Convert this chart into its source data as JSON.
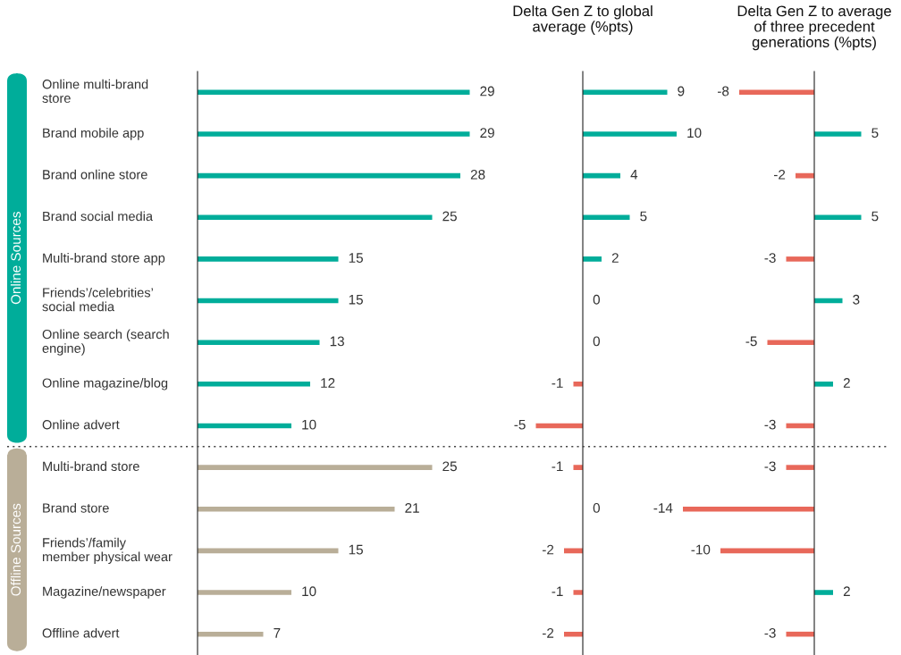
{
  "chart_data": [
    {
      "type": "bar",
      "orientation": "horizontal",
      "tick_labels": "y",
      "data_labels": true,
      "annotations": [
        "Online Sources",
        "Offline Sources"
      ],
      "categories": [
        "Online multi-brand store",
        "Brand mobile app",
        "Brand online store",
        "Brand social media",
        "Multi-brand store app",
        "Friends’/celebrities’ social media",
        "Online search (search engine)",
        "Online magazine/blog",
        "Online advert",
        "Multi-brand store",
        "Brand store",
        "Friends’/family member physical wear",
        "Magazine/newspaper",
        "Offline advert"
      ],
      "values": [
        29,
        29,
        28,
        25,
        15,
        15,
        13,
        12,
        10,
        25,
        21,
        15,
        10,
        7
      ],
      "colors": [
        "#00ad9a",
        "#00ad9a",
        "#00ad9a",
        "#00ad9a",
        "#00ad9a",
        "#00ad9a",
        "#00ad9a",
        "#00ad9a",
        "#00ad9a",
        "#b9ae98",
        "#b9ae98",
        "#b9ae98",
        "#b9ae98",
        "#b9ae98"
      ]
    },
    {
      "type": "bar",
      "orientation": "horizontal",
      "tick_labels": false,
      "data_labels": true,
      "title": "Delta Gen Z to global\naverage (%pts)",
      "categories": [
        null,
        null,
        null,
        null,
        null,
        null,
        null,
        null,
        null,
        null,
        null,
        null,
        null,
        null
      ],
      "values": [
        9,
        10,
        4,
        5,
        2,
        0,
        0,
        -1,
        -5,
        -1,
        0,
        -2,
        -1,
        -2
      ],
      "colors": [
        "#00ad9a",
        "#00ad9a",
        "#00ad9a",
        "#00ad9a",
        "#00ad9a",
        "#00ad9a",
        "#00ad9a",
        "#e8685a",
        "#e8685a",
        "#e8685a",
        "#e8685a",
        "#e8685a",
        "#e8685a",
        "#e8685a"
      ]
    },
    {
      "type": "bar",
      "orientation": "horizontal",
      "tick_labels": false,
      "data_labels": true,
      "title": "Delta Gen Z to average\nof three precedent\ngenerations (%pts)",
      "categories": [
        null,
        null,
        null,
        null,
        null,
        null,
        null,
        null,
        null,
        null,
        null,
        null,
        null,
        null
      ],
      "values": [
        -8,
        5,
        -2,
        5,
        -3,
        3,
        -5,
        2,
        -3,
        -3,
        -14,
        -10,
        2,
        -3
      ],
      "colors": [
        "#e8685a",
        "#00ad9a",
        "#e8685a",
        "#00ad9a",
        "#e8685a",
        "#00ad9a",
        "#e8685a",
        "#00ad9a",
        "#e8685a",
        "#e8685a",
        "#e8685a",
        "#e8685a",
        "#00ad9a",
        "#e8685a"
      ]
    }
  ]
}
